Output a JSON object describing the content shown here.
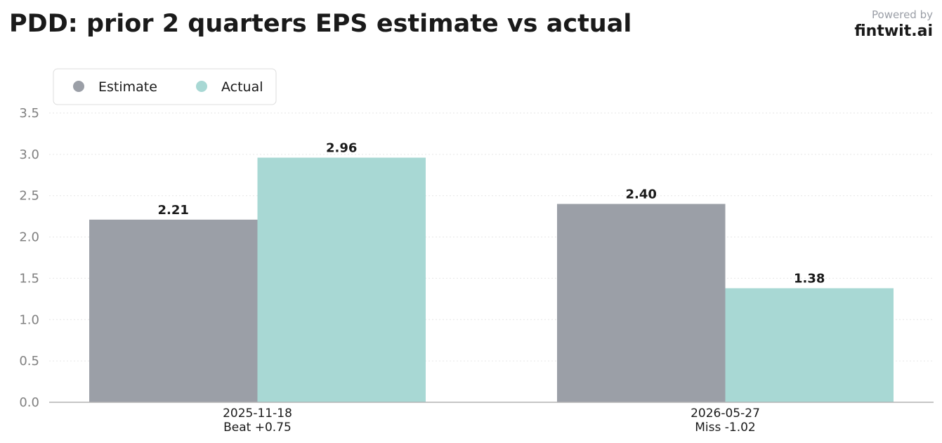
{
  "header": {
    "title": "PDD: prior 2 quarters EPS estimate vs actual",
    "powered_by": "Powered by",
    "brand": "fintwit.ai"
  },
  "colors": {
    "estimate": "#9b9fa7",
    "actual": "#a8d8d4",
    "grid": "#e6e6e6",
    "axis": "#b3b3b3"
  },
  "chart_data": {
    "type": "bar",
    "title": "PDD: prior 2 quarters EPS estimate vs actual",
    "xlabel": "",
    "ylabel": "",
    "categories": [
      [
        "2025-11-18",
        "Beat +0.75"
      ],
      [
        "2026-05-27",
        "Miss -1.02"
      ]
    ],
    "series": [
      {
        "name": "Estimate",
        "values": [
          2.21,
          2.4
        ],
        "labels": [
          "2.21",
          "2.40"
        ],
        "color": "#9b9fa7"
      },
      {
        "name": "Actual",
        "values": [
          2.96,
          1.38
        ],
        "labels": [
          "2.96",
          "1.38"
        ],
        "color": "#a8d8d4"
      }
    ],
    "ylim": [
      0,
      3.5
    ],
    "yticks": [
      "0.0",
      "0.5",
      "1.0",
      "1.5",
      "2.0",
      "2.5",
      "3.0",
      "3.5"
    ],
    "grid": true,
    "legend_position": "top-left"
  }
}
